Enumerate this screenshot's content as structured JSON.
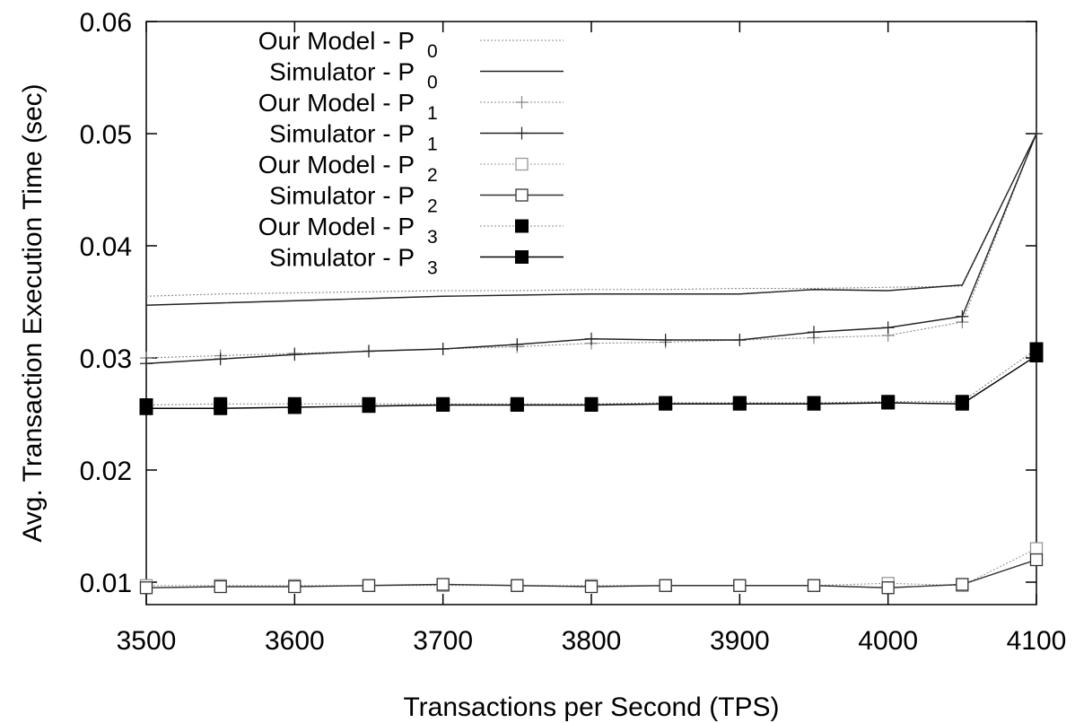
{
  "chart_data": {
    "type": "line",
    "title": "",
    "xlabel": "Transactions per Second (TPS)",
    "ylabel": "Avg. Transaction Execution Time (sec)",
    "xlim": [
      3500,
      4100
    ],
    "ylim": [
      0.008,
      0.06
    ],
    "x_ticks": [
      3500,
      3600,
      3700,
      3800,
      3900,
      4000,
      4100
    ],
    "x_tick_labels": [
      "3500",
      "3600",
      "3700",
      "3800",
      "3900",
      "4000",
      "4100"
    ],
    "y_ticks": [
      0.01,
      0.02,
      0.03,
      0.04,
      0.05,
      0.06
    ],
    "y_tick_labels": [
      "0.01",
      "0.02",
      "0.03",
      "0.04",
      "0.05",
      "0.06"
    ],
    "grid": false,
    "legend_position": "top-left",
    "x": [
      3500,
      3550,
      3600,
      3650,
      3700,
      3750,
      3800,
      3850,
      3900,
      3950,
      4000,
      4050,
      4100
    ],
    "series": [
      {
        "name": "Our Model - P",
        "subscript": "0",
        "style": "dotted",
        "marker": "none",
        "color": "#888888",
        "values": [
          0.0355,
          0.0357,
          0.0358,
          0.0359,
          0.036,
          0.036,
          0.0361,
          0.0361,
          0.0362,
          0.0362,
          0.0363,
          0.0364,
          0.05
        ]
      },
      {
        "name": "Simulator - P",
        "subscript": "0",
        "style": "solid",
        "marker": "none",
        "color": "#222222",
        "values": [
          0.0347,
          0.0349,
          0.0351,
          0.0353,
          0.0355,
          0.0356,
          0.0357,
          0.0357,
          0.0357,
          0.0361,
          0.036,
          0.0365,
          0.05
        ]
      },
      {
        "name": "Our Model - P",
        "subscript": "1",
        "style": "dotted",
        "marker": "plus",
        "color": "#888888",
        "values": [
          0.03,
          0.0302,
          0.0304,
          0.0306,
          0.0308,
          0.031,
          0.0313,
          0.0314,
          0.0316,
          0.0318,
          0.032,
          0.0332,
          0.05
        ]
      },
      {
        "name": "Simulator - P",
        "subscript": "1",
        "style": "solid",
        "marker": "plus",
        "color": "#222222",
        "values": [
          0.0295,
          0.0299,
          0.0303,
          0.0306,
          0.0308,
          0.0312,
          0.0317,
          0.0316,
          0.0316,
          0.0323,
          0.0327,
          0.0337,
          0.05
        ]
      },
      {
        "name": "Our Model - P",
        "subscript": "2",
        "style": "dotted",
        "marker": "open-square",
        "color": "#999999",
        "values": [
          0.0097,
          0.0097,
          0.0097,
          0.0097,
          0.0097,
          0.0097,
          0.0097,
          0.0097,
          0.0097,
          0.0097,
          0.0099,
          0.0097,
          0.013
        ]
      },
      {
        "name": "Simulator - P",
        "subscript": "2",
        "style": "solid",
        "marker": "open-square",
        "color": "#333333",
        "values": [
          0.0095,
          0.0096,
          0.0096,
          0.0097,
          0.0098,
          0.0097,
          0.0096,
          0.0097,
          0.0097,
          0.0097,
          0.0095,
          0.0098,
          0.012
        ]
      },
      {
        "name": "Our Model - P",
        "subscript": "3",
        "style": "dotted",
        "marker": "filled-square",
        "color": "#888888",
        "values": [
          0.0258,
          0.0259,
          0.0259,
          0.0259,
          0.0259,
          0.0259,
          0.0259,
          0.026,
          0.026,
          0.026,
          0.0261,
          0.0261,
          0.0308
        ]
      },
      {
        "name": "Simulator - P",
        "subscript": "3",
        "style": "solid",
        "marker": "filled-square",
        "color": "#000000",
        "values": [
          0.0255,
          0.0255,
          0.0256,
          0.0257,
          0.0258,
          0.0258,
          0.0258,
          0.0259,
          0.0259,
          0.0259,
          0.026,
          0.0259,
          0.0302
        ]
      }
    ]
  }
}
